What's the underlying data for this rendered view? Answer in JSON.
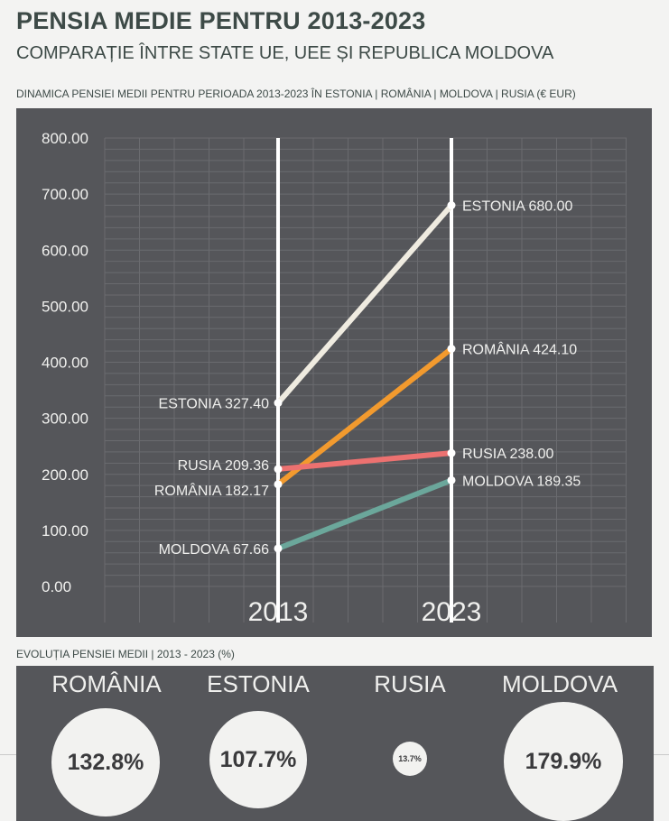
{
  "header": {
    "title": "PENSIA MEDIE PENTRU 2013-2023",
    "subtitle": "COMPARAȚIE ÎNTRE STATE UE, UEE ȘI REPUBLICA MOLDOVA",
    "chart_label": "DINAMICA PENSIEI MEDII PENTRU PERIOADA 2013-2023  ÎN ESTONIA | ROMÂNIA | MOLDOVA | RUSIA (€ EUR)"
  },
  "chart_data": {
    "type": "line",
    "x": [
      "2013",
      "2023"
    ],
    "ylim": [
      0,
      800
    ],
    "y_ticks": [
      "0.00",
      "100.00",
      "200.00",
      "300.00",
      "400.00",
      "500.00",
      "600.00",
      "700.00",
      "800.00"
    ],
    "grid": true,
    "series": [
      {
        "name": "ESTONIA",
        "values": [
          327.4,
          680.0
        ],
        "labels": [
          "ESTONIA 327.40",
          "ESTONIA 680.00"
        ],
        "color": "#efebe0"
      },
      {
        "name": "ROMÂNIA",
        "values": [
          182.17,
          424.1
        ],
        "labels": [
          "ROMÂNIA 182.17",
          "ROMÂNIA 424.10"
        ],
        "color": "#f29a2e"
      },
      {
        "name": "RUSIA",
        "values": [
          209.36,
          238.0
        ],
        "labels": [
          "RUSIA 209.36",
          "RUSIA 238.00"
        ],
        "color": "#ec7170"
      },
      {
        "name": "MOLDOVA",
        "values": [
          67.66,
          189.35
        ],
        "labels": [
          "MOLDOVA 67.66",
          "MOLDOVA 189.35"
        ],
        "color": "#6ba79b"
      }
    ]
  },
  "evolution": {
    "label": "EVOLUȚIA PENSIEI MEDII | 2013 - 2023 (%)",
    "items": [
      {
        "name": "ROMÂNIA",
        "value": "132.8%",
        "percent": 132.8
      },
      {
        "name": "ESTONIA",
        "value": "107.7%",
        "percent": 107.7
      },
      {
        "name": "RUSIA",
        "value": "13.7%",
        "percent": 13.7
      },
      {
        "name": "MOLDOVA",
        "value": "179.9%",
        "percent": 179.9
      }
    ]
  }
}
